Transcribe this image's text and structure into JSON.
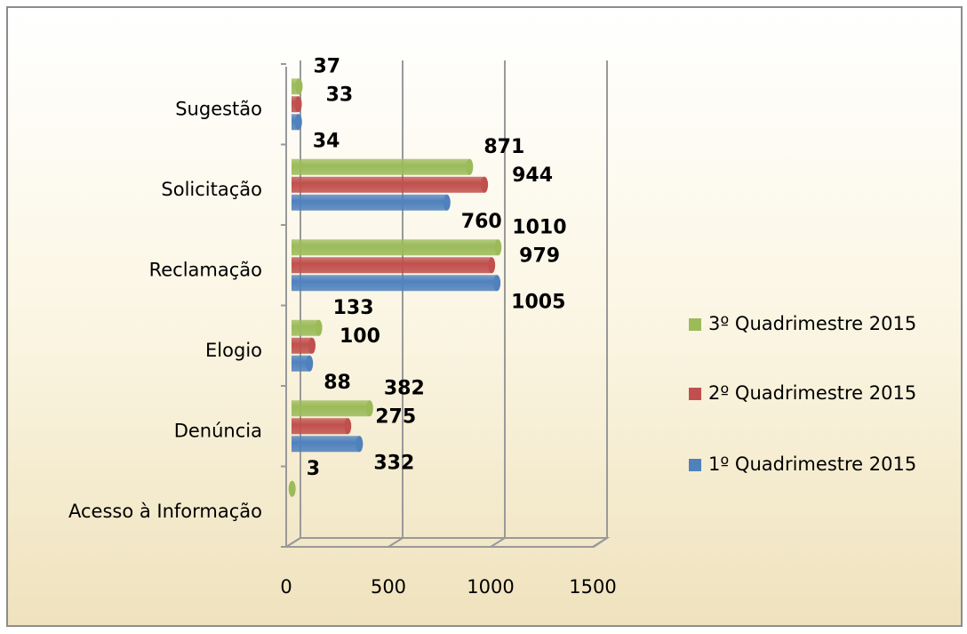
{
  "chart_data": {
    "type": "bar",
    "orientation": "horizontal",
    "categories": [
      "Acesso à  Informação",
      "Denúncia",
      "Elogio",
      "Reclamação",
      "Solicitação",
      "Sugestão"
    ],
    "series": [
      {
        "name": "1º Quadrimestre 2015",
        "color": "#4f81bd",
        "values": [
          null,
          332,
          88,
          1005,
          760,
          34
        ]
      },
      {
        "name": "2º Quadrimestre 2015",
        "color": "#c0504d",
        "values": [
          null,
          275,
          100,
          979,
          944,
          33
        ]
      },
      {
        "name": "3º Quadrimestre 2015",
        "color": "#9bbb59",
        "values": [
          3,
          382,
          133,
          1010,
          871,
          37
        ]
      }
    ],
    "xlim": [
      0,
      1500
    ],
    "xticks": [
      0,
      500,
      1000,
      1500
    ],
    "grid": true,
    "legend": "right"
  }
}
